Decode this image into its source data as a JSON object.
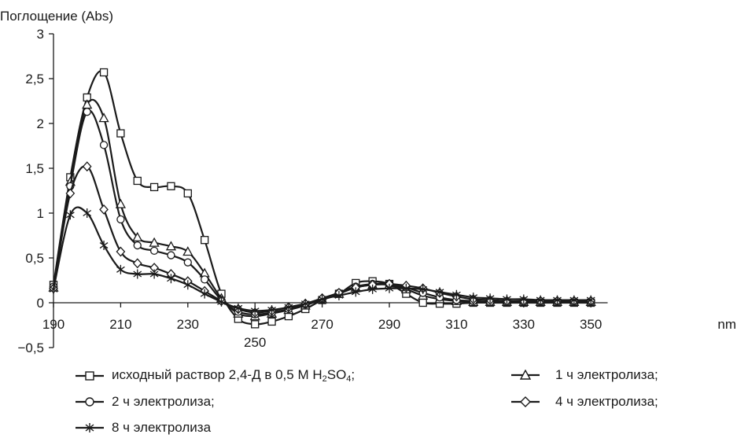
{
  "chart_data": {
    "type": "line",
    "ylabel": "Поглощение (Abs)",
    "xunit": "nm",
    "xlim": [
      190,
      355
    ],
    "ylim": [
      -0.5,
      3
    ],
    "xticks": [
      190,
      210,
      230,
      250,
      270,
      290,
      310,
      330,
      350
    ],
    "xtick_labels": [
      "190",
      "210",
      "230",
      "250",
      "270",
      "290",
      "310",
      "330",
      "350"
    ],
    "yticks": [
      -0.5,
      0,
      0.5,
      1,
      1.5,
      2,
      2.5,
      3
    ],
    "ytick_labels": [
      "−0,5",
      "0",
      "0,5",
      "1",
      "1,5",
      "2",
      "2,5",
      "3"
    ],
    "grid": false,
    "legend_position": "bottom",
    "series": [
      {
        "name": "исходный раствор 2,4-Д в 0,5 М H2SO4;",
        "marker": "square",
        "x": [
          190,
          195,
          200,
          205,
          210,
          215,
          220,
          225,
          230,
          235,
          240,
          245,
          250,
          255,
          260,
          265,
          270,
          275,
          280,
          285,
          290,
          295,
          300,
          305,
          310,
          315,
          320,
          325,
          330,
          335,
          340,
          345,
          350
        ],
        "y": [
          0.2,
          1.4,
          2.29,
          2.57,
          1.89,
          1.36,
          1.29,
          1.3,
          1.22,
          0.7,
          0.1,
          -0.18,
          -0.24,
          -0.21,
          -0.15,
          -0.07,
          0.03,
          0.1,
          0.22,
          0.24,
          0.21,
          0.1,
          0.0,
          -0.01,
          -0.01,
          0.0,
          0.0,
          0.0,
          0.0,
          0.0,
          0.0,
          0.0,
          0.0
        ]
      },
      {
        "name": "1 ч электролиза;",
        "marker": "triangle",
        "x": [
          190,
          195,
          200,
          205,
          210,
          215,
          220,
          225,
          230,
          235,
          240,
          245,
          250,
          255,
          260,
          265,
          270,
          275,
          280,
          285,
          290,
          295,
          300,
          305,
          310,
          315,
          320,
          325,
          330,
          335,
          340,
          345,
          350
        ],
        "y": [
          0.17,
          1.35,
          2.21,
          2.06,
          1.1,
          0.73,
          0.67,
          0.63,
          0.57,
          0.33,
          0.05,
          -0.12,
          -0.15,
          -0.12,
          -0.08,
          -0.03,
          0.04,
          0.1,
          0.17,
          0.2,
          0.2,
          0.15,
          0.08,
          0.04,
          0.02,
          0.01,
          0.01,
          0.01,
          0.01,
          0.01,
          0.01,
          0.01,
          0.01
        ]
      },
      {
        "name": "2 ч электролиза;",
        "marker": "circle",
        "x": [
          190,
          195,
          200,
          205,
          210,
          215,
          220,
          225,
          230,
          235,
          240,
          245,
          250,
          255,
          260,
          265,
          270,
          275,
          280,
          285,
          290,
          295,
          300,
          305,
          310,
          315,
          320,
          325,
          330,
          335,
          340,
          345,
          350
        ],
        "y": [
          0.18,
          1.3,
          2.13,
          1.76,
          0.93,
          0.64,
          0.58,
          0.53,
          0.45,
          0.26,
          0.03,
          -0.1,
          -0.13,
          -0.11,
          -0.07,
          -0.02,
          0.04,
          0.11,
          0.18,
          0.21,
          0.21,
          0.17,
          0.11,
          0.06,
          0.03,
          0.02,
          0.01,
          0.01,
          0.01,
          0.01,
          0.01,
          0.01,
          0.01
        ]
      },
      {
        "name": "4 ч электролиза;",
        "marker": "diamond",
        "x": [
          190,
          195,
          200,
          205,
          210,
          215,
          220,
          225,
          230,
          235,
          240,
          245,
          250,
          255,
          260,
          265,
          270,
          275,
          280,
          285,
          290,
          295,
          300,
          305,
          310,
          315,
          320,
          325,
          330,
          335,
          340,
          345,
          350
        ],
        "y": [
          0.16,
          1.22,
          1.52,
          1.04,
          0.57,
          0.44,
          0.39,
          0.32,
          0.24,
          0.13,
          0.02,
          -0.07,
          -0.11,
          -0.09,
          -0.05,
          -0.01,
          0.05,
          0.11,
          0.17,
          0.2,
          0.21,
          0.19,
          0.16,
          0.11,
          0.07,
          0.04,
          0.03,
          0.02,
          0.02,
          0.02,
          0.02,
          0.02,
          0.02
        ]
      },
      {
        "name": "8 ч электролиза",
        "marker": "asterisk",
        "x": [
          190,
          195,
          200,
          205,
          210,
          215,
          220,
          225,
          230,
          235,
          240,
          245,
          250,
          255,
          260,
          265,
          270,
          275,
          280,
          285,
          290,
          295,
          300,
          305,
          310,
          315,
          320,
          325,
          330,
          335,
          340,
          345,
          350
        ],
        "y": [
          0.15,
          0.98,
          1.0,
          0.64,
          0.37,
          0.32,
          0.32,
          0.27,
          0.2,
          0.1,
          0.01,
          -0.06,
          -0.09,
          -0.08,
          -0.05,
          -0.01,
          0.04,
          0.08,
          0.12,
          0.15,
          0.16,
          0.16,
          0.15,
          0.12,
          0.09,
          0.06,
          0.05,
          0.04,
          0.04,
          0.03,
          0.03,
          0.03,
          0.03
        ]
      }
    ]
  }
}
